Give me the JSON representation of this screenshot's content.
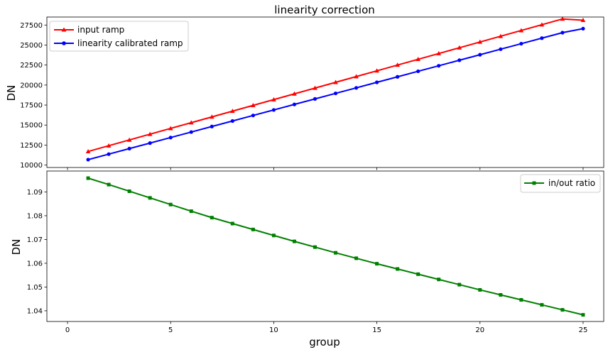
{
  "chart_data": [
    {
      "type": "line",
      "title": "linearity correction",
      "xlabel": "",
      "ylabel": "DN",
      "xlim": [
        -1,
        26
      ],
      "ylim": [
        9700,
        28500
      ],
      "xticks": [
        0,
        5,
        10,
        15,
        20,
        25
      ],
      "yticks": [
        10000,
        12500,
        15000,
        17500,
        20000,
        22500,
        25000,
        27500
      ],
      "ytick_labels": [
        "10000",
        "12500",
        "15000",
        "17500",
        "20000",
        "22500",
        "25000",
        "27500"
      ],
      "legend": "upper-left",
      "x": [
        1,
        2,
        3,
        4,
        5,
        6,
        7,
        8,
        9,
        10,
        11,
        12,
        13,
        14,
        15,
        16,
        17,
        18,
        19,
        20,
        21,
        22,
        23,
        24,
        25
      ],
      "series": [
        {
          "name": "input ramp",
          "color": "#ff0000",
          "marker": "triangle",
          "values": [
            11700,
            12420,
            13140,
            13860,
            14580,
            15300,
            16020,
            16740,
            17460,
            18180,
            18900,
            19620,
            20340,
            21060,
            21780,
            22500,
            23220,
            23940,
            24660,
            25380,
            26100,
            26820,
            27540,
            28260,
            28100
          ]
        },
        {
          "name": "linearity calibrated ramp",
          "color": "#0000ff",
          "marker": "circle",
          "values": [
            10680,
            11370,
            12060,
            12750,
            13440,
            14130,
            14820,
            15510,
            16200,
            16890,
            17580,
            18270,
            18960,
            19650,
            20340,
            21030,
            21720,
            22410,
            23100,
            23790,
            24480,
            25170,
            25860,
            26550,
            27050
          ]
        }
      ]
    },
    {
      "type": "line",
      "title": "",
      "xlabel": "group",
      "ylabel": "DN",
      "xlim": [
        -1,
        26
      ],
      "ylim": [
        1.0355,
        1.0988
      ],
      "xticks": [
        0,
        5,
        10,
        15,
        20,
        25
      ],
      "xtick_labels": [
        "0",
        "5",
        "10",
        "15",
        "20",
        "25"
      ],
      "yticks": [
        1.04,
        1.05,
        1.06,
        1.07,
        1.08,
        1.09
      ],
      "ytick_labels": [
        "1.04",
        "1.05",
        "1.06",
        "1.07",
        "1.08",
        "1.09"
      ],
      "legend": "upper-right",
      "x": [
        1,
        2,
        3,
        4,
        5,
        6,
        7,
        8,
        9,
        10,
        11,
        12,
        13,
        14,
        15,
        16,
        17,
        18,
        19,
        20,
        21,
        22,
        23,
        24,
        25
      ],
      "series": [
        {
          "name": "in/out ratio",
          "color": "#008000",
          "marker": "square",
          "values": [
            1.0958,
            1.0931,
            1.0903,
            1.0875,
            1.0847,
            1.0819,
            1.0792,
            1.0767,
            1.0742,
            1.0717,
            1.0692,
            1.0668,
            1.0644,
            1.0621,
            1.0598,
            1.0576,
            1.0554,
            1.0532,
            1.051,
            1.0488,
            1.0467,
            1.0446,
            1.0425,
            1.0404,
            1.0383
          ]
        }
      ]
    }
  ]
}
